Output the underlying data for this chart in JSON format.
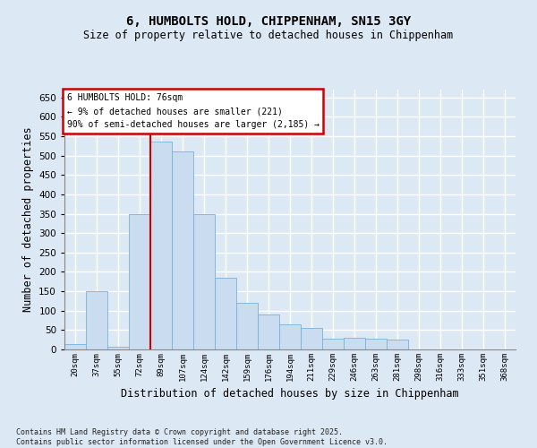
{
  "title1": "6, HUMBOLTS HOLD, CHIPPENHAM, SN15 3GY",
  "title2": "Size of property relative to detached houses in Chippenham",
  "xlabel": "Distribution of detached houses by size in Chippenham",
  "ylabel": "Number of detached properties",
  "bins": [
    "20sqm",
    "37sqm",
    "55sqm",
    "72sqm",
    "89sqm",
    "107sqm",
    "124sqm",
    "142sqm",
    "159sqm",
    "176sqm",
    "194sqm",
    "211sqm",
    "229sqm",
    "246sqm",
    "263sqm",
    "281sqm",
    "298sqm",
    "316sqm",
    "333sqm",
    "351sqm",
    "368sqm"
  ],
  "values": [
    15,
    150,
    8,
    350,
    535,
    510,
    350,
    185,
    120,
    90,
    65,
    55,
    28,
    30,
    28,
    25,
    0,
    0,
    0,
    0,
    0
  ],
  "bar_color": "#c9dcf0",
  "bar_edge_color": "#7ab0d8",
  "annotation_line1": "6 HUMBOLTS HOLD: 76sqm",
  "annotation_line2": "← 9% of detached houses are smaller (221)",
  "annotation_line3": "90% of semi-detached houses are larger (2,185) →",
  "annotation_box_color": "#ffffff",
  "annotation_box_edge": "#cc0000",
  "red_line_color": "#cc0000",
  "red_line_x": 3.52,
  "ylim": [
    0,
    670
  ],
  "yticks": [
    0,
    50,
    100,
    150,
    200,
    250,
    300,
    350,
    400,
    450,
    500,
    550,
    600,
    650
  ],
  "background_color": "#dde8f5",
  "plot_bg_color": "#dde8f5",
  "grid_color": "#ffffff",
  "footer1": "Contains HM Land Registry data © Crown copyright and database right 2025.",
  "footer2": "Contains public sector information licensed under the Open Government Licence v3.0."
}
